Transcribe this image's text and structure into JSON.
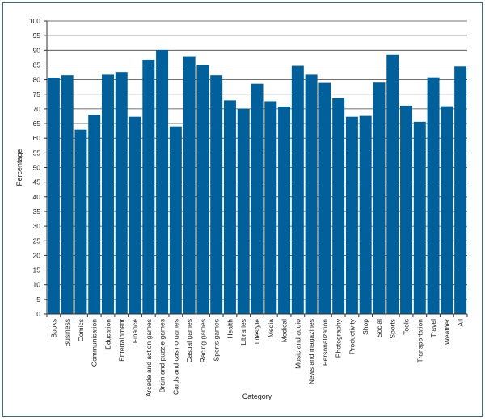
{
  "chart_data": {
    "type": "bar",
    "xlabel": "Category",
    "ylabel": "Percentage",
    "ylim": [
      0,
      100
    ],
    "yticks": [
      0,
      5,
      10,
      15,
      20,
      25,
      30,
      35,
      40,
      45,
      50,
      55,
      60,
      65,
      70,
      75,
      80,
      85,
      90,
      95,
      100
    ],
    "grid": true,
    "bar_color": "#00609c",
    "categories": [
      "Books",
      "Business",
      "Comics",
      "Communication",
      "Education",
      "Entertainment",
      "Finance",
      "Arcade and action games",
      "Brain and puzzle games",
      "Cards and casino games",
      "Casual games",
      "Racing games",
      "Sports games",
      "Health",
      "Libraries",
      "Lifestyle",
      "Media",
      "Medical",
      "Music and audio",
      "News and magazines",
      "Personalization",
      "Photography",
      "Productivity",
      "Shop",
      "Social",
      "Sports",
      "Tools",
      "Transportation",
      "Travel",
      "Weather",
      "All"
    ],
    "values": [
      80.7,
      81.5,
      62.9,
      67.9,
      81.7,
      82.6,
      67.3,
      86.8,
      90.1,
      64.0,
      88.0,
      85.0,
      81.5,
      72.9,
      70.1,
      78.6,
      72.6,
      70.8,
      84.7,
      81.7,
      78.9,
      73.7,
      67.3,
      67.6,
      79.0,
      88.5,
      71.1,
      65.6,
      80.8,
      70.9,
      84.5
    ]
  }
}
